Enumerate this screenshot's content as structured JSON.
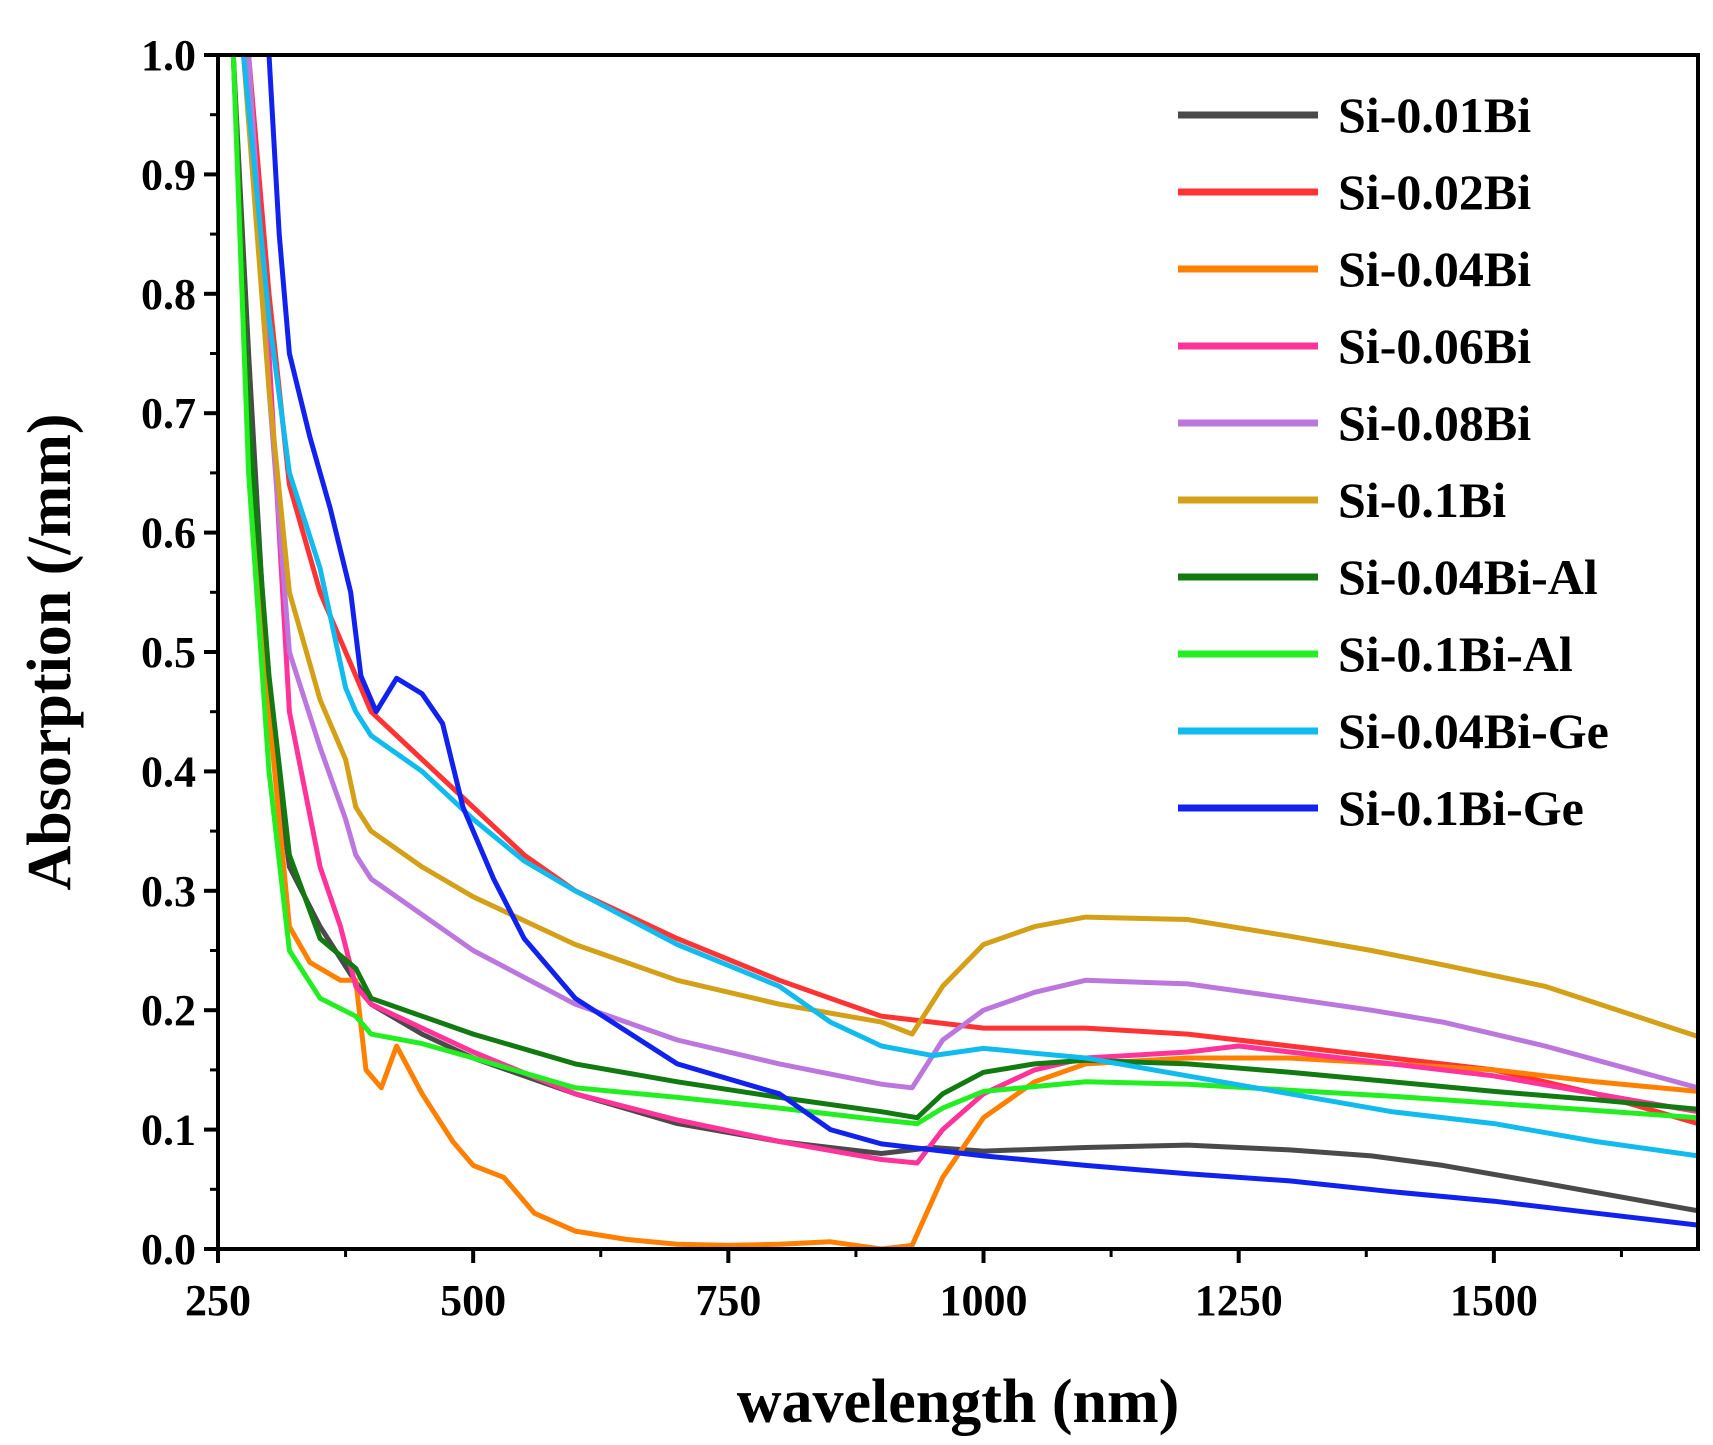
{
  "chart_data": {
    "type": "line",
    "title": "",
    "xlabel": "wavelength (nm)",
    "ylabel": "Absorption (/mm)",
    "xlim": [
      250,
      1700
    ],
    "ylim": [
      0.0,
      1.0
    ],
    "x_ticks": [
      250,
      500,
      750,
      1000,
      1250,
      1500
    ],
    "x_tick_labels": [
      "250",
      "500",
      "750",
      "1000",
      "1250",
      "1500"
    ],
    "y_ticks": [
      0.0,
      0.1,
      0.2,
      0.3,
      0.4,
      0.5,
      0.6,
      0.7,
      0.8,
      0.9,
      1.0
    ],
    "y_tick_labels": [
      "0.0",
      "0.1",
      "0.2",
      "0.3",
      "0.4",
      "0.5",
      "0.6",
      "0.7",
      "0.8",
      "0.9",
      "1.0"
    ],
    "grid": false,
    "legend_position": "top-right",
    "series": [
      {
        "name": "Si-0.01Bi",
        "color": "#4a4a4a",
        "points": [
          [
            265,
            1.0
          ],
          [
            280,
            0.75
          ],
          [
            300,
            0.45
          ],
          [
            320,
            0.32
          ],
          [
            350,
            0.27
          ],
          [
            380,
            0.23
          ],
          [
            400,
            0.205
          ],
          [
            450,
            0.18
          ],
          [
            500,
            0.16
          ],
          [
            600,
            0.13
          ],
          [
            700,
            0.105
          ],
          [
            800,
            0.09
          ],
          [
            900,
            0.08
          ],
          [
            950,
            0.085
          ],
          [
            1000,
            0.082
          ],
          [
            1100,
            0.085
          ],
          [
            1200,
            0.087
          ],
          [
            1300,
            0.083
          ],
          [
            1380,
            0.078
          ],
          [
            1450,
            0.07
          ],
          [
            1550,
            0.055
          ],
          [
            1700,
            0.032
          ]
        ]
      },
      {
        "name": "Si-0.02Bi",
        "color": "#ff3333",
        "points": [
          [
            280,
            1.0
          ],
          [
            300,
            0.8
          ],
          [
            320,
            0.64
          ],
          [
            350,
            0.55
          ],
          [
            380,
            0.49
          ],
          [
            400,
            0.45
          ],
          [
            450,
            0.41
          ],
          [
            500,
            0.37
          ],
          [
            550,
            0.33
          ],
          [
            600,
            0.3
          ],
          [
            700,
            0.26
          ],
          [
            800,
            0.225
          ],
          [
            850,
            0.21
          ],
          [
            900,
            0.195
          ],
          [
            950,
            0.19
          ],
          [
            1000,
            0.185
          ],
          [
            1100,
            0.185
          ],
          [
            1200,
            0.18
          ],
          [
            1300,
            0.17
          ],
          [
            1400,
            0.16
          ],
          [
            1500,
            0.15
          ],
          [
            1600,
            0.13
          ],
          [
            1700,
            0.105
          ]
        ]
      },
      {
        "name": "Si-0.04Bi",
        "color": "#ff8000",
        "points": [
          [
            265,
            1.0
          ],
          [
            280,
            0.7
          ],
          [
            300,
            0.45
          ],
          [
            320,
            0.27
          ],
          [
            340,
            0.24
          ],
          [
            370,
            0.225
          ],
          [
            385,
            0.225
          ],
          [
            395,
            0.15
          ],
          [
            410,
            0.135
          ],
          [
            425,
            0.17
          ],
          [
            450,
            0.13
          ],
          [
            480,
            0.09
          ],
          [
            500,
            0.07
          ],
          [
            530,
            0.06
          ],
          [
            560,
            0.03
          ],
          [
            600,
            0.015
          ],
          [
            650,
            0.008
          ],
          [
            700,
            0.004
          ],
          [
            750,
            0.003
          ],
          [
            800,
            0.004
          ],
          [
            850,
            0.006
          ],
          [
            900,
            0.0
          ],
          [
            930,
            0.003
          ],
          [
            960,
            0.06
          ],
          [
            1000,
            0.11
          ],
          [
            1050,
            0.14
          ],
          [
            1100,
            0.155
          ],
          [
            1200,
            0.16
          ],
          [
            1300,
            0.16
          ],
          [
            1400,
            0.155
          ],
          [
            1500,
            0.15
          ],
          [
            1600,
            0.14
          ],
          [
            1700,
            0.132
          ]
        ]
      },
      {
        "name": "Si-0.06Bi",
        "color": "#ff3399",
        "points": [
          [
            280,
            1.0
          ],
          [
            300,
            0.75
          ],
          [
            320,
            0.45
          ],
          [
            350,
            0.32
          ],
          [
            370,
            0.27
          ],
          [
            385,
            0.22
          ],
          [
            400,
            0.205
          ],
          [
            450,
            0.185
          ],
          [
            500,
            0.165
          ],
          [
            600,
            0.13
          ],
          [
            700,
            0.108
          ],
          [
            800,
            0.09
          ],
          [
            900,
            0.075
          ],
          [
            935,
            0.072
          ],
          [
            960,
            0.1
          ],
          [
            1000,
            0.13
          ],
          [
            1050,
            0.15
          ],
          [
            1100,
            0.16
          ],
          [
            1200,
            0.165
          ],
          [
            1250,
            0.17
          ],
          [
            1300,
            0.165
          ],
          [
            1400,
            0.155
          ],
          [
            1500,
            0.145
          ],
          [
            1600,
            0.13
          ],
          [
            1700,
            0.115
          ]
        ]
      },
      {
        "name": "Si-0.08Bi",
        "color": "#bb77dd",
        "points": [
          [
            280,
            1.0
          ],
          [
            300,
            0.72
          ],
          [
            320,
            0.5
          ],
          [
            350,
            0.42
          ],
          [
            375,
            0.36
          ],
          [
            385,
            0.33
          ],
          [
            400,
            0.31
          ],
          [
            450,
            0.28
          ],
          [
            500,
            0.25
          ],
          [
            600,
            0.205
          ],
          [
            700,
            0.175
          ],
          [
            800,
            0.155
          ],
          [
            900,
            0.138
          ],
          [
            930,
            0.135
          ],
          [
            960,
            0.175
          ],
          [
            1000,
            0.2
          ],
          [
            1050,
            0.215
          ],
          [
            1100,
            0.225
          ],
          [
            1200,
            0.222
          ],
          [
            1300,
            0.21
          ],
          [
            1380,
            0.2
          ],
          [
            1450,
            0.19
          ],
          [
            1550,
            0.17
          ],
          [
            1700,
            0.135
          ]
        ]
      },
      {
        "name": "Si-0.1Bi",
        "color": "#d4a017",
        "points": [
          [
            275,
            1.0
          ],
          [
            300,
            0.72
          ],
          [
            320,
            0.55
          ],
          [
            350,
            0.46
          ],
          [
            375,
            0.41
          ],
          [
            385,
            0.37
          ],
          [
            400,
            0.35
          ],
          [
            450,
            0.32
          ],
          [
            500,
            0.295
          ],
          [
            600,
            0.255
          ],
          [
            700,
            0.225
          ],
          [
            800,
            0.205
          ],
          [
            900,
            0.19
          ],
          [
            930,
            0.18
          ],
          [
            960,
            0.22
          ],
          [
            1000,
            0.255
          ],
          [
            1050,
            0.27
          ],
          [
            1100,
            0.278
          ],
          [
            1200,
            0.276
          ],
          [
            1300,
            0.262
          ],
          [
            1380,
            0.25
          ],
          [
            1450,
            0.238
          ],
          [
            1550,
            0.22
          ],
          [
            1700,
            0.178
          ]
        ]
      },
      {
        "name": "Si-0.04Bi-Al",
        "color": "#117a11",
        "points": [
          [
            265,
            1.0
          ],
          [
            280,
            0.7
          ],
          [
            300,
            0.48
          ],
          [
            320,
            0.33
          ],
          [
            350,
            0.26
          ],
          [
            385,
            0.235
          ],
          [
            400,
            0.21
          ],
          [
            450,
            0.195
          ],
          [
            500,
            0.18
          ],
          [
            600,
            0.155
          ],
          [
            700,
            0.14
          ],
          [
            800,
            0.127
          ],
          [
            900,
            0.115
          ],
          [
            935,
            0.11
          ],
          [
            960,
            0.13
          ],
          [
            1000,
            0.148
          ],
          [
            1050,
            0.155
          ],
          [
            1100,
            0.158
          ],
          [
            1200,
            0.155
          ],
          [
            1300,
            0.148
          ],
          [
            1400,
            0.14
          ],
          [
            1500,
            0.132
          ],
          [
            1600,
            0.125
          ],
          [
            1700,
            0.117
          ]
        ]
      },
      {
        "name": "Si-0.1Bi-Al",
        "color": "#22ee22",
        "points": [
          [
            265,
            1.0
          ],
          [
            280,
            0.65
          ],
          [
            300,
            0.4
          ],
          [
            320,
            0.25
          ],
          [
            350,
            0.21
          ],
          [
            385,
            0.195
          ],
          [
            400,
            0.18
          ],
          [
            450,
            0.172
          ],
          [
            500,
            0.16
          ],
          [
            600,
            0.135
          ],
          [
            700,
            0.127
          ],
          [
            800,
            0.118
          ],
          [
            900,
            0.108
          ],
          [
            935,
            0.105
          ],
          [
            960,
            0.118
          ],
          [
            1000,
            0.132
          ],
          [
            1100,
            0.14
          ],
          [
            1200,
            0.138
          ],
          [
            1300,
            0.133
          ],
          [
            1400,
            0.128
          ],
          [
            1500,
            0.122
          ],
          [
            1600,
            0.116
          ],
          [
            1700,
            0.11
          ]
        ]
      },
      {
        "name": "Si-0.04Bi-Ge",
        "color": "#11bbee",
        "points": [
          [
            275,
            1.0
          ],
          [
            300,
            0.78
          ],
          [
            320,
            0.65
          ],
          [
            350,
            0.57
          ],
          [
            375,
            0.47
          ],
          [
            385,
            0.45
          ],
          [
            400,
            0.43
          ],
          [
            450,
            0.4
          ],
          [
            500,
            0.36
          ],
          [
            550,
            0.325
          ],
          [
            600,
            0.3
          ],
          [
            700,
            0.255
          ],
          [
            800,
            0.22
          ],
          [
            850,
            0.19
          ],
          [
            900,
            0.17
          ],
          [
            950,
            0.162
          ],
          [
            1000,
            0.168
          ],
          [
            1100,
            0.16
          ],
          [
            1200,
            0.145
          ],
          [
            1300,
            0.13
          ],
          [
            1400,
            0.115
          ],
          [
            1500,
            0.105
          ],
          [
            1600,
            0.09
          ],
          [
            1700,
            0.078
          ]
        ]
      },
      {
        "name": "Si-0.1Bi-Ge",
        "color": "#1122ee",
        "points": [
          [
            300,
            1.0
          ],
          [
            310,
            0.85
          ],
          [
            320,
            0.75
          ],
          [
            340,
            0.68
          ],
          [
            360,
            0.62
          ],
          [
            380,
            0.55
          ],
          [
            390,
            0.48
          ],
          [
            405,
            0.45
          ],
          [
            425,
            0.478
          ],
          [
            450,
            0.465
          ],
          [
            470,
            0.44
          ],
          [
            490,
            0.37
          ],
          [
            520,
            0.31
          ],
          [
            550,
            0.26
          ],
          [
            600,
            0.21
          ],
          [
            700,
            0.155
          ],
          [
            800,
            0.13
          ],
          [
            850,
            0.1
          ],
          [
            900,
            0.088
          ],
          [
            950,
            0.083
          ],
          [
            1000,
            0.078
          ],
          [
            1100,
            0.07
          ],
          [
            1200,
            0.063
          ],
          [
            1300,
            0.057
          ],
          [
            1400,
            0.048
          ],
          [
            1500,
            0.04
          ],
          [
            1600,
            0.03
          ],
          [
            1700,
            0.02
          ]
        ]
      }
    ]
  }
}
